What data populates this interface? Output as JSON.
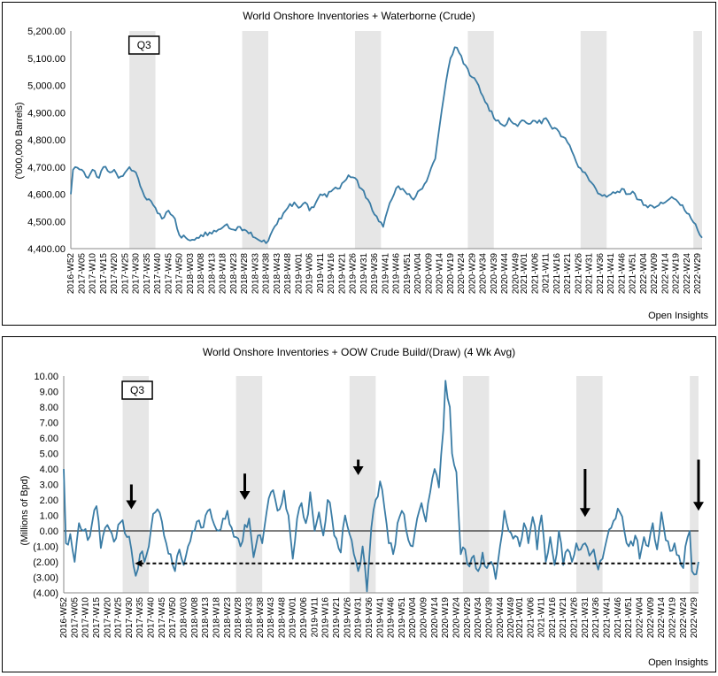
{
  "source": "Open Insights",
  "x_tick_labels": [
    "2016-W52",
    "2017-W05",
    "2017-W10",
    "2017-W15",
    "2017-W20",
    "2017-W25",
    "2017-W30",
    "2017-W35",
    "2017-W40",
    "2017-W45",
    "2017-W50",
    "2018-W03",
    "2018-W08",
    "2018-W13",
    "2018-W18",
    "2018-W23",
    "2018-W28",
    "2018-W33",
    "2018-W38",
    "2018-W43",
    "2018-W48",
    "2019-W01",
    "2019-W06",
    "2019-W11",
    "2019-W16",
    "2019-W21",
    "2019-W26",
    "2019-W31",
    "2019-W36",
    "2019-W41",
    "2019-W46",
    "2019-W51",
    "2020-W04",
    "2020-W09",
    "2020-W14",
    "2020-W19",
    "2020-W24",
    "2020-W29",
    "2020-W34",
    "2020-W39",
    "2020-W44",
    "2020-W49",
    "2021-W01",
    "2021-W06",
    "2021-W11",
    "2021-W16",
    "2021-W21",
    "2021-W26",
    "2021-W31",
    "2021-W36",
    "2021-W41",
    "2021-W46",
    "2021-W51",
    "2022-W04",
    "2022-W09",
    "2022-W14",
    "2022-W19",
    "2022-W24",
    "2022-W29"
  ],
  "chart_data": [
    {
      "type": "line",
      "title": "World Onshore Inventories + Waterborne (Crude)",
      "ylabel": "('000,000 Barrels)",
      "ylim": [
        4400,
        5200
      ],
      "y_ticks": [
        4400,
        4500,
        4600,
        4700,
        4800,
        4900,
        5000,
        5100,
        5200
      ],
      "y_tick_labels": [
        "4,400.00",
        "4,500.00",
        "4,600.00",
        "4,700.00",
        "4,800.00",
        "4,900.00",
        "5,000.00",
        "5,100.00",
        "5,200.00"
      ],
      "annotation": "Q3",
      "line_color": "#3a7ca5",
      "shade_color": "#e6e6e6",
      "q3_shaded_ranges": [
        [
          "2017-W27",
          "2017-W39"
        ],
        [
          "2018-W27",
          "2018-W39"
        ],
        [
          "2019-W27",
          "2019-W39"
        ],
        [
          "2020-W27",
          "2020-W39"
        ],
        [
          "2021-W27",
          "2021-W39"
        ],
        [
          "2022-W27",
          "2022-W31"
        ]
      ],
      "anchors": [
        [
          "2016-W52",
          4600
        ],
        [
          "2016-W53",
          4690
        ],
        [
          "2017-W02",
          4700
        ],
        [
          "2017-W05",
          4690
        ],
        [
          "2017-W08",
          4660
        ],
        [
          "2017-W10",
          4690
        ],
        [
          "2017-W13",
          4660
        ],
        [
          "2017-W15",
          4700
        ],
        [
          "2017-W18",
          4680
        ],
        [
          "2017-W20",
          4690
        ],
        [
          "2017-W22",
          4660
        ],
        [
          "2017-W25",
          4680
        ],
        [
          "2017-W27",
          4700
        ],
        [
          "2017-W30",
          4680
        ],
        [
          "2017-W32",
          4630
        ],
        [
          "2017-W35",
          4580
        ],
        [
          "2017-W38",
          4560
        ],
        [
          "2017-W40",
          4530
        ],
        [
          "2017-W42",
          4510
        ],
        [
          "2017-W45",
          4540
        ],
        [
          "2017-W48",
          4510
        ],
        [
          "2017-W50",
          4450
        ],
        [
          "2018-W01",
          4440
        ],
        [
          "2018-W03",
          4430
        ],
        [
          "2018-W06",
          4440
        ],
        [
          "2018-W08",
          4450
        ],
        [
          "2018-W12",
          4460
        ],
        [
          "2018-W16",
          4470
        ],
        [
          "2018-W20",
          4490
        ],
        [
          "2018-W23",
          4470
        ],
        [
          "2018-W26",
          4480
        ],
        [
          "2018-W28",
          4470
        ],
        [
          "2018-W31",
          4460
        ],
        [
          "2018-W33",
          4440
        ],
        [
          "2018-W35",
          4430
        ],
        [
          "2018-W38",
          4420
        ],
        [
          "2018-W40",
          4450
        ],
        [
          "2018-W43",
          4490
        ],
        [
          "2018-W46",
          4530
        ],
        [
          "2018-W48",
          4550
        ],
        [
          "2018-W51",
          4570
        ],
        [
          "2019-W01",
          4550
        ],
        [
          "2019-W04",
          4570
        ],
        [
          "2019-W06",
          4540
        ],
        [
          "2019-W09",
          4570
        ],
        [
          "2019-W11",
          4600
        ],
        [
          "2019-W14",
          4590
        ],
        [
          "2019-W16",
          4610
        ],
        [
          "2019-W19",
          4620
        ],
        [
          "2019-W21",
          4640
        ],
        [
          "2019-W24",
          4670
        ],
        [
          "2019-W27",
          4660
        ],
        [
          "2019-W30",
          4620
        ],
        [
          "2019-W33",
          4580
        ],
        [
          "2019-W35",
          4540
        ],
        [
          "2019-W38",
          4500
        ],
        [
          "2019-W40",
          4480
        ],
        [
          "2019-W42",
          4540
        ],
        [
          "2019-W45",
          4600
        ],
        [
          "2019-W47",
          4630
        ],
        [
          "2019-W49",
          4620
        ],
        [
          "2019-W51",
          4600
        ],
        [
          "2020-W02",
          4580
        ],
        [
          "2020-W04",
          4610
        ],
        [
          "2020-W06",
          4620
        ],
        [
          "2020-W09",
          4670
        ],
        [
          "2020-W12",
          4730
        ],
        [
          "2020-W14",
          4850
        ],
        [
          "2020-W16",
          4960
        ],
        [
          "2020-W18",
          5060
        ],
        [
          "2020-W19",
          5100
        ],
        [
          "2020-W21",
          5140
        ],
        [
          "2020-W23",
          5120
        ],
        [
          "2020-W25",
          5080
        ],
        [
          "2020-W27",
          5060
        ],
        [
          "2020-W29",
          5030
        ],
        [
          "2020-W32",
          5000
        ],
        [
          "2020-W34",
          4960
        ],
        [
          "2020-W36",
          4930
        ],
        [
          "2020-W39",
          4880
        ],
        [
          "2020-W42",
          4860
        ],
        [
          "2020-W44",
          4850
        ],
        [
          "2020-W46",
          4880
        ],
        [
          "2020-W48",
          4860
        ],
        [
          "2020-W50",
          4850
        ],
        [
          "2021-W01",
          4870
        ],
        [
          "2021-W04",
          4860
        ],
        [
          "2021-W06",
          4870
        ],
        [
          "2021-W09",
          4860
        ],
        [
          "2021-W11",
          4880
        ],
        [
          "2021-W14",
          4840
        ],
        [
          "2021-W16",
          4840
        ],
        [
          "2021-W19",
          4810
        ],
        [
          "2021-W21",
          4790
        ],
        [
          "2021-W24",
          4740
        ],
        [
          "2021-W26",
          4700
        ],
        [
          "2021-W29",
          4680
        ],
        [
          "2021-W31",
          4650
        ],
        [
          "2021-W34",
          4620
        ],
        [
          "2021-W36",
          4600
        ],
        [
          "2021-W39",
          4590
        ],
        [
          "2021-W41",
          4600
        ],
        [
          "2021-W44",
          4610
        ],
        [
          "2021-W46",
          4620
        ],
        [
          "2021-W48",
          4600
        ],
        [
          "2021-W51",
          4610
        ],
        [
          "2022-W02",
          4580
        ],
        [
          "2022-W04",
          4560
        ],
        [
          "2022-W07",
          4560
        ],
        [
          "2022-W09",
          4550
        ],
        [
          "2022-W12",
          4570
        ],
        [
          "2022-W14",
          4570
        ],
        [
          "2022-W17",
          4590
        ],
        [
          "2022-W19",
          4580
        ],
        [
          "2022-W22",
          4560
        ],
        [
          "2022-W24",
          4530
        ],
        [
          "2022-W26",
          4510
        ],
        [
          "2022-W28",
          4490
        ],
        [
          "2022-W30",
          4450
        ],
        [
          "2022-W31",
          4440
        ]
      ]
    },
    {
      "type": "line",
      "title": "World Onshore Inventories + OOW Crude Build/(Draw) (4 Wk Avg)",
      "ylabel": "(Millions of Bpd)",
      "ylim": [
        -4,
        10
      ],
      "y_ticks": [
        -4,
        -3,
        -2,
        -1,
        0,
        1,
        2,
        3,
        4,
        5,
        6,
        7,
        8,
        9,
        10
      ],
      "y_tick_labels": [
        "(4.00)",
        "(3.00)",
        "(2.00)",
        "(1.00)",
        "0.00",
        "1.00",
        "2.00",
        "3.00",
        "4.00",
        "5.00",
        "6.00",
        "7.00",
        "8.00",
        "9.00",
        "10.00"
      ],
      "annotation": "Q3",
      "reference_line_value": -2.1,
      "down_arrow_weeks": [
        "2017-W31",
        "2018-W31",
        "2019-W31",
        "2021-W31",
        "2022-W31"
      ],
      "line_color": "#3a7ca5",
      "shade_color": "#e6e6e6",
      "q3_shaded_ranges": [
        [
          "2017-W27",
          "2017-W39"
        ],
        [
          "2018-W27",
          "2018-W39"
        ],
        [
          "2019-W27",
          "2019-W39"
        ],
        [
          "2020-W27",
          "2020-W39"
        ],
        [
          "2021-W27",
          "2021-W39"
        ],
        [
          "2022-W27",
          "2022-W31"
        ]
      ],
      "anchors": [
        [
          "2016-W52",
          4.0
        ],
        [
          "2017-W01",
          -0.8
        ],
        [
          "2017-W03",
          -0.2
        ],
        [
          "2017-W05",
          -2.0
        ],
        [
          "2017-W07",
          0.5
        ],
        [
          "2017-W09",
          0.0
        ],
        [
          "2017-W11",
          -0.6
        ],
        [
          "2017-W13",
          0.5
        ],
        [
          "2017-W15",
          1.6
        ],
        [
          "2017-W17",
          -1.1
        ],
        [
          "2017-W19",
          0.2
        ],
        [
          "2017-W21",
          0.1
        ],
        [
          "2017-W23",
          -0.7
        ],
        [
          "2017-W25",
          0.4
        ],
        [
          "2017-W27",
          0.7
        ],
        [
          "2017-W29",
          -0.4
        ],
        [
          "2017-W31",
          -1.2
        ],
        [
          "2017-W33",
          -2.9
        ],
        [
          "2017-W35",
          -1.5
        ],
        [
          "2017-W37",
          -2.0
        ],
        [
          "2017-W39",
          -1.0
        ],
        [
          "2017-W41",
          1.1
        ],
        [
          "2017-W43",
          1.4
        ],
        [
          "2017-W45",
          0.6
        ],
        [
          "2017-W47",
          -0.8
        ],
        [
          "2017-W49",
          -1.5
        ],
        [
          "2017-W51",
          -2.6
        ],
        [
          "2018-W01",
          -1.2
        ],
        [
          "2018-W03",
          -2.2
        ],
        [
          "2018-W05",
          -1.0
        ],
        [
          "2018-W07",
          0.0
        ],
        [
          "2018-W09",
          0.6
        ],
        [
          "2018-W11",
          0.2
        ],
        [
          "2018-W13",
          1.0
        ],
        [
          "2018-W15",
          1.4
        ],
        [
          "2018-W17",
          0.4
        ],
        [
          "2018-W19",
          0.0
        ],
        [
          "2018-W21",
          0.8
        ],
        [
          "2018-W23",
          1.3
        ],
        [
          "2018-W25",
          0.2
        ],
        [
          "2018-W27",
          -0.4
        ],
        [
          "2018-W29",
          -1.0
        ],
        [
          "2018-W31",
          0.4
        ],
        [
          "2018-W33",
          0.8
        ],
        [
          "2018-W35",
          -1.7
        ],
        [
          "2018-W37",
          -0.3
        ],
        [
          "2018-W39",
          -0.8
        ],
        [
          "2018-W41",
          1.2
        ],
        [
          "2018-W43",
          2.5
        ],
        [
          "2018-W45",
          2.0
        ],
        [
          "2018-W47",
          1.4
        ],
        [
          "2018-W49",
          2.6
        ],
        [
          "2018-W51",
          1.0
        ],
        [
          "2019-W01",
          -1.8
        ],
        [
          "2019-W03",
          0.8
        ],
        [
          "2019-W05",
          1.8
        ],
        [
          "2019-W07",
          0.5
        ],
        [
          "2019-W09",
          2.5
        ],
        [
          "2019-W11",
          0.0
        ],
        [
          "2019-W13",
          1.2
        ],
        [
          "2019-W15",
          -0.3
        ],
        [
          "2019-W17",
          2.0
        ],
        [
          "2019-W19",
          0.8
        ],
        [
          "2019-W21",
          -0.5
        ],
        [
          "2019-W23",
          -1.4
        ],
        [
          "2019-W25",
          1.0
        ],
        [
          "2019-W27",
          -0.2
        ],
        [
          "2019-W29",
          -1.5
        ],
        [
          "2019-W31",
          -2.6
        ],
        [
          "2019-W33",
          -1.0
        ],
        [
          "2019-W35",
          -3.9
        ],
        [
          "2019-W37",
          0.2
        ],
        [
          "2019-W39",
          2.0
        ],
        [
          "2019-W41",
          3.2
        ],
        [
          "2019-W43",
          1.5
        ],
        [
          "2019-W45",
          -0.8
        ],
        [
          "2019-W47",
          -1.5
        ],
        [
          "2019-W49",
          0.5
        ],
        [
          "2019-W51",
          1.3
        ],
        [
          "2020-W02",
          -0.6
        ],
        [
          "2020-W04",
          -1.0
        ],
        [
          "2020-W06",
          0.8
        ],
        [
          "2020-W08",
          1.8
        ],
        [
          "2020-W10",
          0.6
        ],
        [
          "2020-W12",
          2.5
        ],
        [
          "2020-W14",
          4.0
        ],
        [
          "2020-W16",
          2.8
        ],
        [
          "2020-W18",
          6.5
        ],
        [
          "2020-W19",
          9.7
        ],
        [
          "2020-W21",
          8.0
        ],
        [
          "2020-W22",
          5.0
        ],
        [
          "2020-W24",
          3.8
        ],
        [
          "2020-W26",
          -1.5
        ],
        [
          "2020-W28",
          -1.2
        ],
        [
          "2020-W30",
          -2.3
        ],
        [
          "2020-W32",
          -1.6
        ],
        [
          "2020-W34",
          -2.6
        ],
        [
          "2020-W36",
          -1.4
        ],
        [
          "2020-W38",
          -2.4
        ],
        [
          "2020-W40",
          -2.0
        ],
        [
          "2020-W42",
          -3.1
        ],
        [
          "2020-W44",
          -1.0
        ],
        [
          "2020-W46",
          1.3
        ],
        [
          "2020-W48",
          0.0
        ],
        [
          "2020-W50",
          -0.5
        ],
        [
          "2021-W01",
          -1.0
        ],
        [
          "2021-W03",
          0.5
        ],
        [
          "2021-W05",
          -0.8
        ],
        [
          "2021-W07",
          0.9
        ],
        [
          "2021-W09",
          -1.2
        ],
        [
          "2021-W11",
          1.0
        ],
        [
          "2021-W13",
          -2.0
        ],
        [
          "2021-W15",
          -0.4
        ],
        [
          "2021-W17",
          -2.2
        ],
        [
          "2021-W19",
          0.0
        ],
        [
          "2021-W21",
          -2.2
        ],
        [
          "2021-W23",
          -1.2
        ],
        [
          "2021-W25",
          -2.0
        ],
        [
          "2021-W27",
          -0.8
        ],
        [
          "2021-W29",
          -1.2
        ],
        [
          "2021-W31",
          -0.8
        ],
        [
          "2021-W33",
          -1.6
        ],
        [
          "2021-W35",
          -1.2
        ],
        [
          "2021-W37",
          -2.5
        ],
        [
          "2021-W39",
          -1.8
        ],
        [
          "2021-W41",
          -0.5
        ],
        [
          "2021-W43",
          0.2
        ],
        [
          "2021-W45",
          0.8
        ],
        [
          "2021-W47",
          1.2
        ],
        [
          "2021-W49",
          0.0
        ],
        [
          "2021-W51",
          -1.0
        ],
        [
          "2022-W02",
          -0.3
        ],
        [
          "2022-W04",
          -1.8
        ],
        [
          "2022-W06",
          -0.4
        ],
        [
          "2022-W08",
          -1.0
        ],
        [
          "2022-W10",
          0.5
        ],
        [
          "2022-W12",
          -1.2
        ],
        [
          "2022-W14",
          1.2
        ],
        [
          "2022-W16",
          -0.6
        ],
        [
          "2022-W18",
          -1.3
        ],
        [
          "2022-W20",
          -0.8
        ],
        [
          "2022-W22",
          -1.6
        ],
        [
          "2022-W24",
          -2.4
        ],
        [
          "2022-W25",
          -1.0
        ],
        [
          "2022-W26",
          -0.4
        ],
        [
          "2022-W27",
          0.0
        ],
        [
          "2022-W28",
          -2.6
        ],
        [
          "2022-W30",
          -2.8
        ],
        [
          "2022-W31",
          -2.0
        ]
      ]
    }
  ]
}
